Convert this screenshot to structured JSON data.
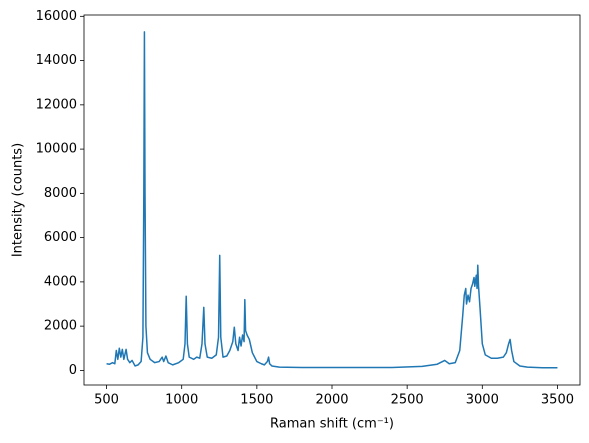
{
  "chart_data": {
    "type": "line",
    "xlabel": "Raman shift (cm⁻¹)",
    "ylabel": "Intensity (counts)",
    "xlim": [
      350,
      3650
    ],
    "ylim": [
      -660,
      16060
    ],
    "xticks": [
      500,
      1000,
      1500,
      2000,
      2500,
      3000,
      3500
    ],
    "yticks": [
      0,
      2000,
      4000,
      6000,
      8000,
      10000,
      12000,
      14000,
      16000
    ],
    "grid": false,
    "series": [
      {
        "color": "#1f77b4",
        "x": [
          500,
          520,
          540,
          555,
          565,
          575,
          585,
          595,
          605,
          615,
          630,
          640,
          655,
          670,
          690,
          710,
          730,
          742,
          748,
          752,
          756,
          762,
          772,
          790,
          820,
          850,
          870,
          880,
          895,
          910,
          940,
          980,
          1010,
          1022,
          1030,
          1038,
          1050,
          1080,
          1100,
          1120,
          1135,
          1147,
          1155,
          1170,
          1200,
          1230,
          1245,
          1253,
          1260,
          1275,
          1300,
          1320,
          1340,
          1350,
          1360,
          1375,
          1385,
          1395,
          1405,
          1415,
          1420,
          1425,
          1435,
          1450,
          1470,
          1500,
          1530,
          1550,
          1570,
          1578,
          1585,
          1600,
          1650,
          1800,
          2000,
          2200,
          2400,
          2600,
          2700,
          2750,
          2780,
          2820,
          2850,
          2870,
          2880,
          2890,
          2895,
          2905,
          2915,
          2925,
          2935,
          2945,
          2950,
          2960,
          2965,
          2970,
          2975,
          2985,
          3000,
          3020,
          3060,
          3100,
          3140,
          3160,
          3175,
          3185,
          3195,
          3210,
          3250,
          3300,
          3400,
          3500
        ],
        "values": [
          300,
          280,
          350,
          300,
          900,
          500,
          1000,
          600,
          950,
          500,
          950,
          500,
          350,
          450,
          200,
          250,
          400,
          1500,
          8000,
          15300,
          8000,
          2000,
          800,
          500,
          350,
          400,
          600,
          400,
          650,
          350,
          250,
          350,
          500,
          1200,
          3350,
          1200,
          600,
          500,
          600,
          550,
          1200,
          2850,
          1200,
          600,
          550,
          700,
          1500,
          5200,
          1500,
          600,
          650,
          900,
          1300,
          1950,
          1200,
          900,
          1500,
          1100,
          1600,
          1300,
          3200,
          1800,
          1600,
          1400,
          800,
          400,
          300,
          250,
          400,
          600,
          300,
          200,
          150,
          130,
          130,
          130,
          130,
          180,
          280,
          450,
          300,
          350,
          900,
          2500,
          3400,
          3700,
          3000,
          3400,
          3100,
          3700,
          3900,
          4200,
          3800,
          4300,
          3700,
          4750,
          3800,
          2800,
          1200,
          700,
          550,
          550,
          600,
          800,
          1200,
          1400,
          900,
          400,
          200,
          150,
          120,
          120
        ]
      }
    ]
  }
}
